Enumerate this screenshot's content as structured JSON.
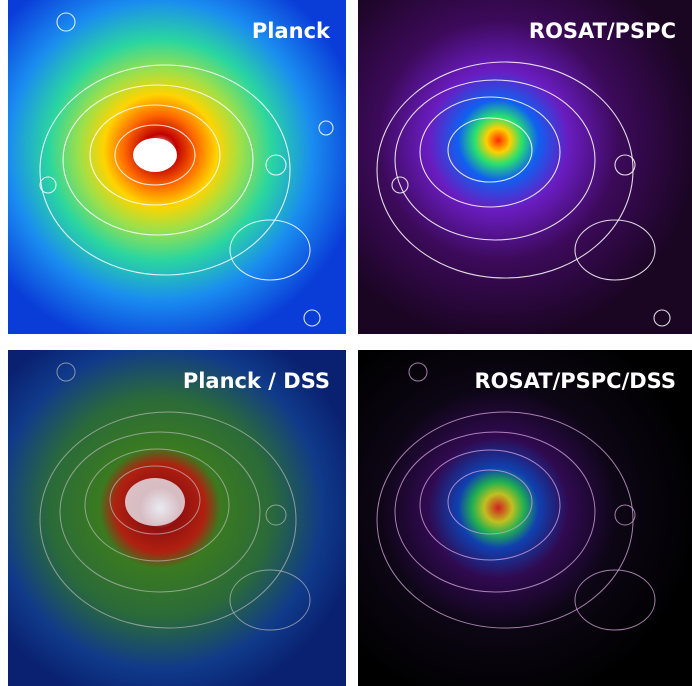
{
  "panels": [
    {
      "label": "Planck"
    },
    {
      "label": "ROSAT/PSPC"
    },
    {
      "label": "Planck / DSS"
    },
    {
      "label": "ROSAT/PSPC/DSS"
    }
  ]
}
